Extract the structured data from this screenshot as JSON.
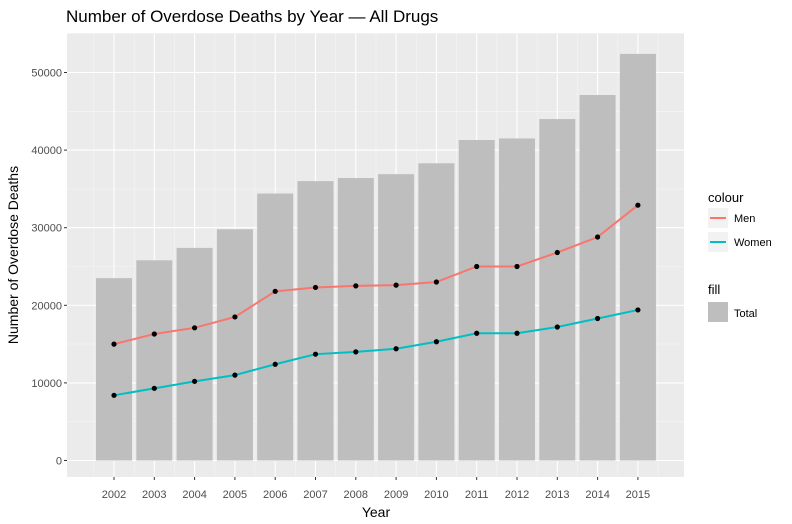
{
  "chart_data": {
    "type": "bar",
    "title": "Number of Overdose Deaths by Year — All Drugs",
    "xlabel": "Year",
    "ylabel": "Number of Overdose Deaths",
    "categories": [
      "2002",
      "2003",
      "2004",
      "2005",
      "2006",
      "2007",
      "2008",
      "2009",
      "2010",
      "2011",
      "2012",
      "2013",
      "2014",
      "2015"
    ],
    "ylim": [
      0,
      55000
    ],
    "yticks": [
      0,
      10000,
      20000,
      30000,
      40000,
      50000
    ],
    "ytick_labels": [
      "0",
      "10000",
      "20000",
      "30000",
      "40000",
      "50000"
    ],
    "grid": true,
    "legend_position": "right",
    "series": [
      {
        "name": "Total",
        "kind": "bar",
        "legend_group": "fill",
        "color": "#bebebe",
        "values": [
          23500,
          25800,
          27400,
          29800,
          34400,
          36000,
          36400,
          36900,
          38300,
          41300,
          41500,
          44000,
          47100,
          52400
        ]
      },
      {
        "name": "Men",
        "kind": "line",
        "legend_group": "colour",
        "color": "#f8766d",
        "values": [
          15000,
          16300,
          17100,
          18500,
          21800,
          22300,
          22500,
          22600,
          23000,
          25000,
          25000,
          26800,
          28800,
          32900
        ]
      },
      {
        "name": "Women",
        "kind": "line",
        "legend_group": "colour",
        "color": "#00bfc4",
        "values": [
          8400,
          9300,
          10200,
          11000,
          12400,
          13700,
          14000,
          14400,
          15300,
          16400,
          16400,
          17200,
          18300,
          19400
        ]
      }
    ],
    "legend": {
      "colour_title": "colour",
      "fill_title": "fill"
    },
    "colors": {
      "panel": "#ebebeb",
      "grid_major": "#ffffff",
      "point": "#000000"
    }
  }
}
